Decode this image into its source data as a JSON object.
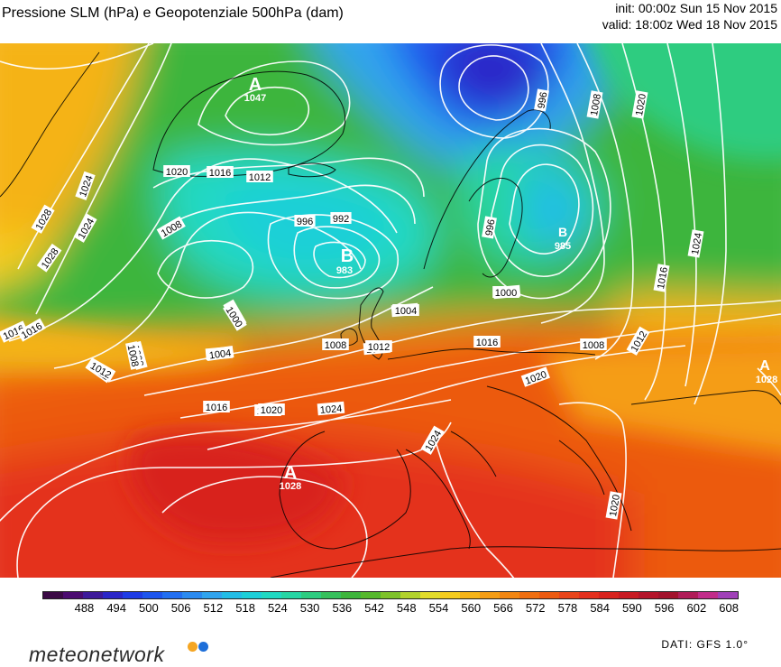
{
  "header": {
    "title": "Pressione SLM (hPa) e Geopotenziale 500hPa (dam)",
    "init": "init: 00:00z Sun 15 Nov 2015",
    "valid": "valid: 18:00z Wed 18 Nov 2015"
  },
  "map": {
    "colors": {
      "red": "#e8311d",
      "orange": "#f2840f",
      "yellow_orange": "#f5b318",
      "green": "#3cb539",
      "light_green": "#4fc85a",
      "cyan": "#24d6d0",
      "light_blue": "#38a7f0",
      "blue": "#1e5cf0",
      "isobar": "#ffffff",
      "coast": "#000000"
    },
    "centers": [
      {
        "type": "A",
        "value": "1047"
      },
      {
        "type": "B",
        "value": "983"
      },
      {
        "type": "A",
        "value": "1028"
      },
      {
        "type": "B",
        "value": "985"
      },
      {
        "type": "A",
        "value": "1028"
      }
    ],
    "isobar_labels": [
      "1028",
      "1024",
      "1016",
      "1012",
      "1008",
      "1004",
      "1000",
      "996",
      "992",
      "1020",
      "1016",
      "1012",
      "1008",
      "1028",
      "1024",
      "1016",
      "1012",
      "1008",
      "1004",
      "1000",
      "1008",
      "1012",
      "1016",
      "1020",
      "1024",
      "996",
      "1008",
      "1020",
      "1004",
      "1012",
      "1000",
      "996",
      "1024",
      "1016",
      "1020",
      "1012",
      "1008",
      "1016",
      "1020",
      "1004",
      "1000",
      "1024",
      "1020"
    ]
  },
  "legend": {
    "colors": [
      "#3b0a45",
      "#4b0b70",
      "#3d1a9a",
      "#2a26c8",
      "#1e3ce6",
      "#1d55ee",
      "#226ff2",
      "#2a8af0",
      "#30a4ee",
      "#22bde6",
      "#1ccfd8",
      "#20d9c2",
      "#26d6a4",
      "#2dcc80",
      "#36c05c",
      "#3db53c",
      "#55b82c",
      "#7ec22a",
      "#b2d22c",
      "#e2dc2a",
      "#f5cc1e",
      "#f6b418",
      "#f59d14",
      "#f28612",
      "#ef6e10",
      "#ec5a10",
      "#e8441a",
      "#e4301e",
      "#d8231e",
      "#c81a22",
      "#b4142a",
      "#a2122c",
      "#b01c58",
      "#c22c8a",
      "#a040b8"
    ],
    "labels": [
      "488",
      "494",
      "500",
      "506",
      "512",
      "518",
      "524",
      "530",
      "536",
      "542",
      "548",
      "554",
      "560",
      "566",
      "572",
      "578",
      "584",
      "590",
      "596",
      "602",
      "608"
    ]
  },
  "footer": {
    "brand": "meteonetwork",
    "brand_dot_colors": [
      "#f5a623",
      "#1e6fd9"
    ],
    "source": "DATI: GFS 1.0°"
  }
}
